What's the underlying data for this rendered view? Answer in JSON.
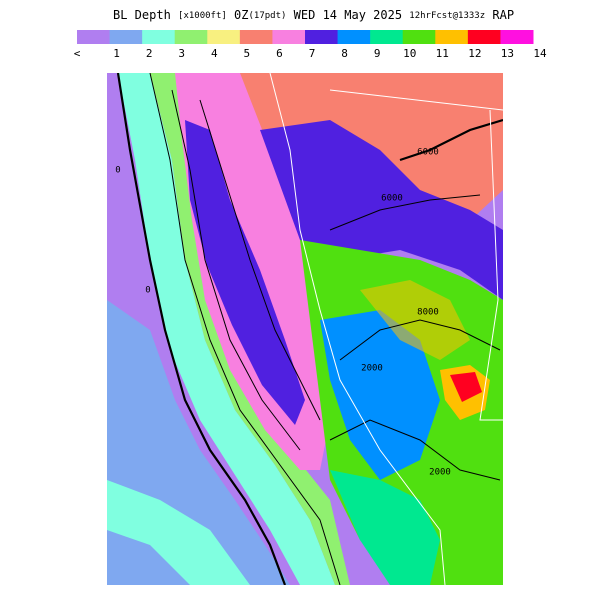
{
  "title": {
    "main": "BL Depth",
    "unit": "[x1000ft]",
    "time": "0Z",
    "local": "(17pdt)",
    "date": "WED 14 May 2025",
    "fcst": "12hrFcst@1333z",
    "model": "RAP"
  },
  "legend": {
    "labels": [
      "<",
      "1",
      "2",
      "3",
      "4",
      "5",
      "6",
      "7",
      "8",
      "9",
      "10",
      "11",
      "12",
      "13",
      "14"
    ],
    "colors": [
      "#b07ef0",
      "#7fa8f0",
      "#80ffe0",
      "#90f070",
      "#f8f080",
      "#f88070",
      "#f880e0",
      "#5020e0",
      "#0090ff",
      "#00e890",
      "#50e010",
      "#ffc000",
      "#ff0020",
      "#ff10e0"
    ]
  },
  "map": {
    "contour_labels": [
      "0",
      "0",
      "6000",
      "6000",
      "8000",
      "2000",
      "2000"
    ]
  }
}
